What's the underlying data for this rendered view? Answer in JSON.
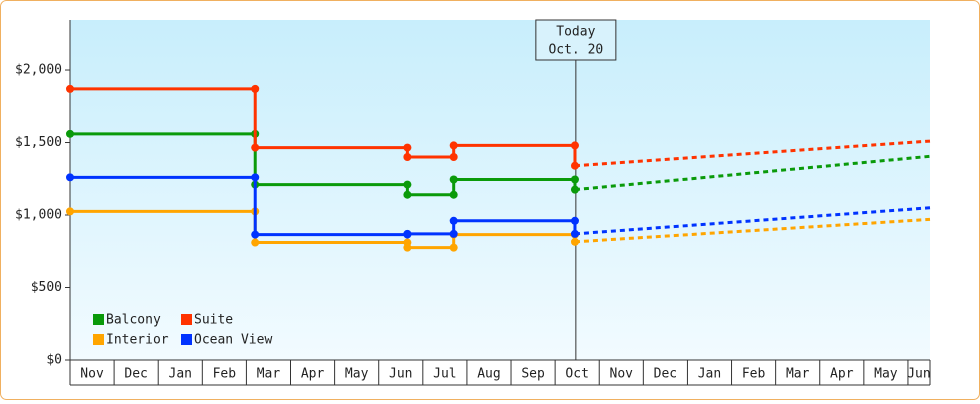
{
  "chart_data": {
    "type": "line",
    "xlim": [
      0,
      19.5
    ],
    "ylim": [
      0,
      2345
    ],
    "yticks": [
      {
        "value": 0,
        "label": "$0"
      },
      {
        "value": 500,
        "label": "$500"
      },
      {
        "value": 1000,
        "label": "$1,000"
      },
      {
        "value": 1500,
        "label": "$1,500"
      },
      {
        "value": 2000,
        "label": "$2,000"
      }
    ],
    "xticks": [
      {
        "value": 0,
        "label": "Nov"
      },
      {
        "value": 1,
        "label": "Dec"
      },
      {
        "value": 2,
        "label": "Jan"
      },
      {
        "value": 3,
        "label": "Feb"
      },
      {
        "value": 4,
        "label": "Mar"
      },
      {
        "value": 5,
        "label": "Apr"
      },
      {
        "value": 6,
        "label": "May"
      },
      {
        "value": 7,
        "label": "Jun"
      },
      {
        "value": 8,
        "label": "Jul"
      },
      {
        "value": 9,
        "label": "Aug"
      },
      {
        "value": 10,
        "label": "Sep"
      },
      {
        "value": 11,
        "label": "Oct"
      },
      {
        "value": 12,
        "label": "Nov"
      },
      {
        "value": 13,
        "label": "Dec"
      },
      {
        "value": 14,
        "label": "Jan"
      },
      {
        "value": 15,
        "label": "Feb"
      },
      {
        "value": 16,
        "label": "Mar"
      },
      {
        "value": 17,
        "label": "Apr"
      },
      {
        "value": 18,
        "label": "May"
      },
      {
        "value": 19,
        "label": "Jun"
      }
    ],
    "annotation": {
      "x": 11.47,
      "lines": [
        "Today",
        "Oct. 20"
      ]
    },
    "legend": "lower left",
    "series": [
      {
        "name": "Balcony",
        "color": "#0a9a0a",
        "x": [
          0,
          4.2,
          4.2,
          7.65,
          7.65,
          8.7,
          8.7,
          11.45,
          11.45
        ],
        "values": [
          1560,
          1560,
          1210,
          1210,
          1140,
          1140,
          1245,
          1245,
          1175
        ],
        "projection": {
          "x": [
            11.45,
            19.5
          ],
          "values": [
            1175,
            1405
          ]
        }
      },
      {
        "name": "Suite",
        "color": "#ff3300",
        "x": [
          0,
          4.2,
          4.2,
          7.65,
          7.65,
          8.7,
          8.7,
          11.45,
          11.45
        ],
        "values": [
          1870,
          1870,
          1465,
          1465,
          1400,
          1400,
          1480,
          1480,
          1340
        ],
        "projection": {
          "x": [
            11.45,
            19.5
          ],
          "values": [
            1340,
            1510
          ]
        }
      },
      {
        "name": "Interior",
        "color": "#ffa500",
        "x": [
          0,
          4.2,
          4.2,
          7.65,
          7.65,
          8.7,
          8.7,
          11.45,
          11.45
        ],
        "values": [
          1025,
          1025,
          810,
          810,
          775,
          775,
          865,
          865,
          815
        ],
        "projection": {
          "x": [
            11.45,
            19.5
          ],
          "values": [
            815,
            970
          ]
        }
      },
      {
        "name": "Ocean View",
        "color": "#0033ff",
        "x": [
          0,
          4.2,
          4.2,
          7.65,
          7.65,
          8.7,
          8.7,
          11.45,
          11.45
        ],
        "values": [
          1260,
          1260,
          865,
          865,
          870,
          870,
          960,
          960,
          870
        ],
        "projection": {
          "x": [
            11.45,
            19.5
          ],
          "values": [
            870,
            1050
          ]
        }
      }
    ]
  }
}
